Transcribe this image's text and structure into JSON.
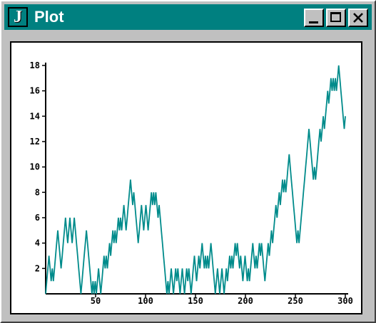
{
  "window": {
    "title": "Plot",
    "icon_letter": "J",
    "icon": "j-app-icon",
    "controls": [
      "minimize-icon",
      "maximize-icon",
      "close-icon"
    ]
  },
  "colors": {
    "titlebar": "#008080",
    "line": "#008b8b",
    "frame": "#c0c0c0"
  },
  "chart_data": {
    "type": "line",
    "title": "",
    "xlabel": "",
    "ylabel": "",
    "xlim": [
      0,
      300
    ],
    "ylim": [
      0,
      18
    ],
    "x_ticks": [
      50,
      100,
      150,
      200,
      250,
      300
    ],
    "y_ticks": [
      2,
      4,
      6,
      8,
      10,
      12,
      14,
      16,
      18
    ],
    "grid": false,
    "series": [
      {
        "color": "#008b8b",
        "values": [
          0,
          1,
          2,
          3,
          2,
          1,
          2,
          1,
          2,
          3,
          4,
          5,
          4,
          3,
          2,
          3,
          4,
          5,
          6,
          5,
          4,
          5,
          6,
          5,
          4,
          5,
          6,
          5,
          4,
          3,
          2,
          1,
          0,
          1,
          2,
          3,
          4,
          5,
          4,
          3,
          2,
          1,
          0,
          1,
          0,
          1,
          0,
          1,
          2,
          1,
          0,
          1,
          2,
          3,
          2,
          3,
          2,
          3,
          4,
          3,
          4,
          5,
          4,
          5,
          4,
          5,
          6,
          5,
          6,
          5,
          6,
          7,
          6,
          5,
          6,
          7,
          8,
          9,
          8,
          7,
          8,
          7,
          6,
          5,
          4,
          5,
          6,
          7,
          6,
          5,
          6,
          7,
          6,
          5,
          6,
          7,
          8,
          7,
          8,
          7,
          8,
          7,
          6,
          7,
          6,
          5,
          4,
          3,
          2,
          1,
          0,
          1,
          0,
          1,
          2,
          1,
          0,
          1,
          2,
          1,
          2,
          1,
          0,
          1,
          2,
          1,
          0,
          1,
          2,
          1,
          2,
          1,
          0,
          1,
          2,
          3,
          2,
          1,
          2,
          3,
          2,
          3,
          4,
          3,
          2,
          3,
          2,
          3,
          2,
          3,
          4,
          3,
          2,
          1,
          0,
          1,
          2,
          1,
          0,
          1,
          2,
          1,
          0,
          1,
          2,
          1,
          2,
          3,
          2,
          3,
          2,
          3,
          4,
          3,
          4,
          3,
          2,
          3,
          2,
          1,
          2,
          3,
          2,
          1,
          2,
          1,
          2,
          3,
          4,
          3,
          2,
          3,
          2,
          3,
          4,
          3,
          4,
          3,
          2,
          1,
          2,
          3,
          4,
          3,
          4,
          5,
          4,
          5,
          6,
          7,
          6,
          7,
          8,
          7,
          8,
          9,
          8,
          9,
          8,
          9,
          10,
          11,
          10,
          9,
          8,
          7,
          6,
          5,
          4,
          5,
          4,
          5,
          6,
          7,
          8,
          9,
          10,
          11,
          12,
          13,
          12,
          11,
          10,
          9,
          10,
          9,
          10,
          11,
          12,
          13,
          12,
          13,
          14,
          13,
          14,
          15,
          16,
          15,
          16,
          17,
          16,
          17,
          16,
          17,
          16,
          17,
          18,
          17,
          16,
          15,
          14,
          13,
          14
        ]
      }
    ]
  }
}
